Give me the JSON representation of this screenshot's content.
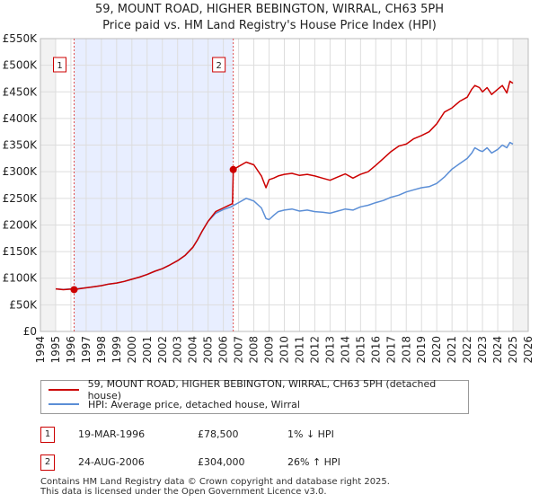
{
  "chart_data": {
    "type": "line",
    "title": "59, MOUNT ROAD, HIGHER BEBINGTON, WIRRAL, CH63 5PH",
    "subtitle": "Price paid vs. HM Land Registry's House Price Index (HPI)",
    "xlim": [
      1994,
      2026
    ],
    "ylim": [
      0,
      550000
    ],
    "x_ticks": [
      1994,
      1995,
      1996,
      1997,
      1998,
      1999,
      2000,
      2001,
      2002,
      2003,
      2004,
      2005,
      2006,
      2007,
      2008,
      2009,
      2010,
      2011,
      2012,
      2013,
      2014,
      2015,
      2016,
      2017,
      2018,
      2019,
      2020,
      2021,
      2022,
      2023,
      2024,
      2025,
      2026
    ],
    "y_ticks": [
      {
        "value": 0,
        "label": "£0"
      },
      {
        "value": 50000,
        "label": "£50K"
      },
      {
        "value": 100000,
        "label": "£100K"
      },
      {
        "value": 150000,
        "label": "£150K"
      },
      {
        "value": 200000,
        "label": "£200K"
      },
      {
        "value": 250000,
        "label": "£250K"
      },
      {
        "value": 300000,
        "label": "£300K"
      },
      {
        "value": 350000,
        "label": "£350K"
      },
      {
        "value": 400000,
        "label": "£400K"
      },
      {
        "value": 450000,
        "label": "£450K"
      },
      {
        "value": 500000,
        "label": "£500K"
      },
      {
        "value": 550000,
        "label": "£550K"
      }
    ],
    "shaded_region": [
      1996.21,
      2006.65
    ],
    "data_start": 1995.0,
    "series": [
      {
        "name": "59, MOUNT ROAD, HIGHER BEBINGTON, WIRRAL, CH63 5PH (detached house)",
        "color": "#cc0000",
        "x": [
          1995.0,
          1995.5,
          1996.0,
          1996.21,
          1996.5,
          1997.0,
          1997.5,
          1998.0,
          1998.5,
          1999.0,
          1999.5,
          2000.0,
          2000.5,
          2001.0,
          2001.5,
          2002.0,
          2002.5,
          2003.0,
          2003.5,
          2004.0,
          2004.3,
          2004.6,
          2005.0,
          2005.5,
          2006.0,
          2006.6,
          2006.65,
          2007.0,
          2007.5,
          2008.0,
          2008.5,
          2008.8,
          2009.0,
          2009.3,
          2009.6,
          2010.0,
          2010.5,
          2011.0,
          2011.5,
          2012.0,
          2012.5,
          2013.0,
          2013.5,
          2014.0,
          2014.5,
          2015.0,
          2015.5,
          2016.0,
          2016.5,
          2017.0,
          2017.5,
          2018.0,
          2018.5,
          2019.0,
          2019.5,
          2020.0,
          2020.5,
          2021.0,
          2021.5,
          2022.0,
          2022.3,
          2022.5,
          2022.8,
          2023.0,
          2023.3,
          2023.6,
          2024.0,
          2024.3,
          2024.6,
          2024.8,
          2025.0
        ],
        "values": [
          80000,
          78500,
          79500,
          78500,
          80000,
          82000,
          84000,
          86000,
          89000,
          91000,
          94000,
          98000,
          102000,
          107000,
          113000,
          118000,
          125000,
          133000,
          143000,
          158000,
          172000,
          188000,
          207000,
          225000,
          232000,
          240000,
          304000,
          310000,
          318000,
          313000,
          292000,
          270000,
          285000,
          288000,
          292000,
          295000,
          297000,
          293000,
          295000,
          292000,
          288000,
          284000,
          290000,
          296000,
          288000,
          295000,
          300000,
          312000,
          325000,
          338000,
          348000,
          352000,
          362000,
          368000,
          375000,
          390000,
          412000,
          420000,
          432000,
          440000,
          455000,
          462000,
          458000,
          450000,
          458000,
          445000,
          455000,
          462000,
          448000,
          470000,
          466000
        ]
      },
      {
        "name": "HPI: Average price, detached house, Wirral",
        "color": "#5b8ed6",
        "x": [
          1995.0,
          1995.5,
          1996.0,
          1996.5,
          1997.0,
          1997.5,
          1998.0,
          1998.5,
          1999.0,
          1999.5,
          2000.0,
          2000.5,
          2001.0,
          2001.5,
          2002.0,
          2002.5,
          2003.0,
          2003.5,
          2004.0,
          2004.3,
          2004.6,
          2005.0,
          2005.5,
          2006.0,
          2006.5,
          2007.0,
          2007.5,
          2008.0,
          2008.5,
          2008.8,
          2009.0,
          2009.3,
          2009.6,
          2010.0,
          2010.5,
          2011.0,
          2011.5,
          2012.0,
          2012.5,
          2013.0,
          2013.5,
          2014.0,
          2014.5,
          2015.0,
          2015.5,
          2016.0,
          2016.5,
          2017.0,
          2017.5,
          2018.0,
          2018.5,
          2019.0,
          2019.5,
          2020.0,
          2020.5,
          2021.0,
          2021.5,
          2022.0,
          2022.3,
          2022.5,
          2022.8,
          2023.0,
          2023.3,
          2023.6,
          2024.0,
          2024.3,
          2024.6,
          2024.8,
          2025.0
        ],
        "values": [
          80000,
          79000,
          80000,
          80500,
          82000,
          84000,
          86000,
          89000,
          91000,
          94000,
          98000,
          102000,
          107000,
          113000,
          118000,
          125000,
          133000,
          143000,
          158000,
          172000,
          188000,
          207000,
          222000,
          229000,
          234000,
          242000,
          250000,
          245000,
          232000,
          212000,
          210000,
          218000,
          225000,
          228000,
          230000,
          226000,
          228000,
          225000,
          224000,
          222000,
          226000,
          230000,
          228000,
          234000,
          237000,
          242000,
          246000,
          252000,
          256000,
          262000,
          266000,
          270000,
          272000,
          278000,
          290000,
          305000,
          315000,
          325000,
          335000,
          345000,
          340000,
          338000,
          345000,
          335000,
          342000,
          350000,
          345000,
          355000,
          352000
        ]
      }
    ],
    "markers": [
      {
        "label": "1",
        "x": 1996.21,
        "value": 78500
      },
      {
        "label": "2",
        "x": 2006.65,
        "value": 304000
      }
    ]
  },
  "legend": {
    "property": "59, MOUNT ROAD, HIGHER BEBINGTON, WIRRAL, CH63 5PH (detached house)",
    "hpi": "HPI: Average price, detached house, Wirral"
  },
  "transactions": [
    {
      "num": "1",
      "date": "19-MAR-1996",
      "price": "£78,500",
      "hpi": "1% ↓ HPI"
    },
    {
      "num": "2",
      "date": "24-AUG-2006",
      "price": "£304,000",
      "hpi": "26% ↑ HPI"
    }
  ],
  "footer": {
    "line1": "Contains HM Land Registry data © Crown copyright and database right 2025.",
    "line2": "This data is licensed under the Open Government Licence v3.0."
  },
  "colors": {
    "property": "#cc0000",
    "hpi": "#5b8ed6",
    "shade": "#e8eeff",
    "grid": "#dddddd"
  }
}
